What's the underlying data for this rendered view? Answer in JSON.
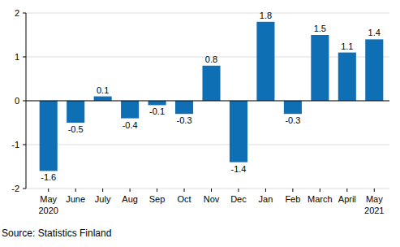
{
  "chart_data": {
    "type": "bar",
    "categories": [
      "May 2020",
      "June",
      "July",
      "Aug",
      "Sep",
      "Oct",
      "Nov",
      "Dec",
      "Jan",
      "Feb",
      "March",
      "April",
      "May 2021"
    ],
    "values": [
      -1.6,
      -0.5,
      0.1,
      -0.4,
      -0.1,
      -0.3,
      0.8,
      -1.4,
      1.8,
      -0.3,
      1.5,
      1.1,
      1.4
    ],
    "color": "#0f6fb4",
    "ylim": [
      -2,
      2
    ],
    "yticks": [
      -2,
      -1,
      0,
      1,
      2
    ],
    "grid": true,
    "data_labels": true,
    "source": "Source: Statistics Finland"
  }
}
